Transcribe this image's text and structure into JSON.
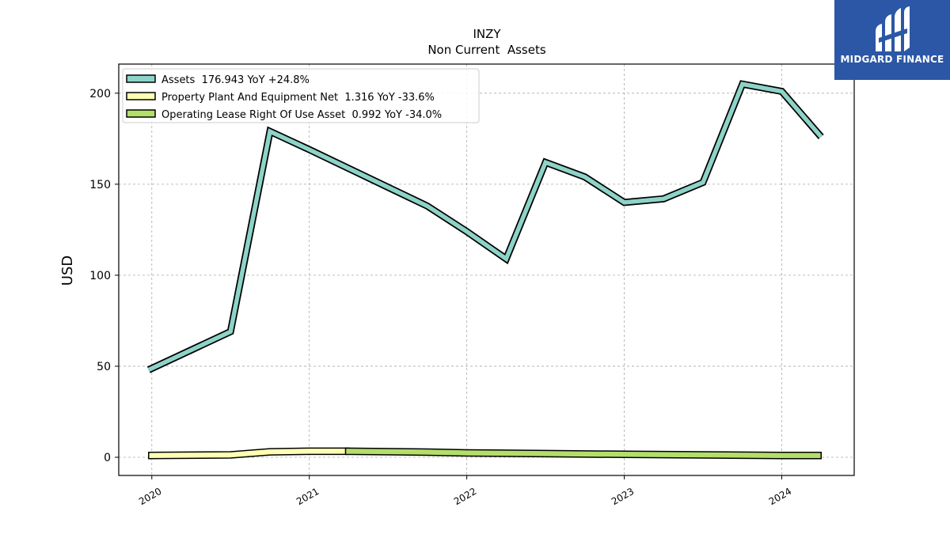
{
  "brand": {
    "name": "MIDGARD FINANCE",
    "bg_color": "#2b57a6"
  },
  "chart_data": {
    "type": "line",
    "title": "INZY",
    "subtitle": "Non Current  Assets",
    "ylabel": "USD",
    "xlabel": "",
    "ylim": [
      -10,
      216
    ],
    "xlim": [
      2019.79,
      2024.46
    ],
    "x_ticks": [
      2020,
      2021,
      2022,
      2023,
      2024
    ],
    "x_tick_labels": [
      "2020",
      "2021",
      "2022",
      "2023",
      "2024"
    ],
    "y_ticks": [
      0,
      50,
      100,
      150,
      200
    ],
    "y_tick_labels": [
      "0",
      "50",
      "100",
      "150",
      "200"
    ],
    "grid": true,
    "legend_position": "top-left",
    "series": [
      {
        "name": "Assets  176.943 YoY +24.8%",
        "color": "#8dd3c7",
        "style": "thick-line",
        "points": [
          [
            2019.98,
            48
          ],
          [
            2020.5,
            69
          ],
          [
            2020.75,
            179
          ],
          [
            2021.0,
            169
          ],
          [
            2021.75,
            138
          ],
          [
            2022.0,
            124
          ],
          [
            2022.25,
            109
          ],
          [
            2022.5,
            162
          ],
          [
            2022.75,
            154
          ],
          [
            2023.0,
            140
          ],
          [
            2023.25,
            142
          ],
          [
            2023.5,
            151
          ],
          [
            2023.75,
            205
          ],
          [
            2024.0,
            201
          ],
          [
            2024.25,
            176
          ]
        ]
      },
      {
        "name": "Property Plant And Equipment Net  1.316 YoY -33.6%",
        "color": "#ffffb3",
        "style": "band",
        "points": [
          [
            2019.98,
            1.0
          ],
          [
            2020.5,
            1.3
          ],
          [
            2020.75,
            3.0
          ],
          [
            2021.0,
            3.3
          ],
          [
            2021.25,
            3.3
          ]
        ]
      },
      {
        "name": "Operating Lease Right Of Use Asset  0.992 YoY -34.0%",
        "color": "#b3de69",
        "style": "band",
        "points": [
          [
            2021.23,
            3.3
          ],
          [
            2021.75,
            2.8
          ],
          [
            2022.0,
            2.4
          ],
          [
            2022.5,
            2.0
          ],
          [
            2023.0,
            1.6
          ],
          [
            2023.5,
            1.3
          ],
          [
            2024.0,
            1.0
          ],
          [
            2024.25,
            0.99
          ]
        ]
      }
    ]
  }
}
